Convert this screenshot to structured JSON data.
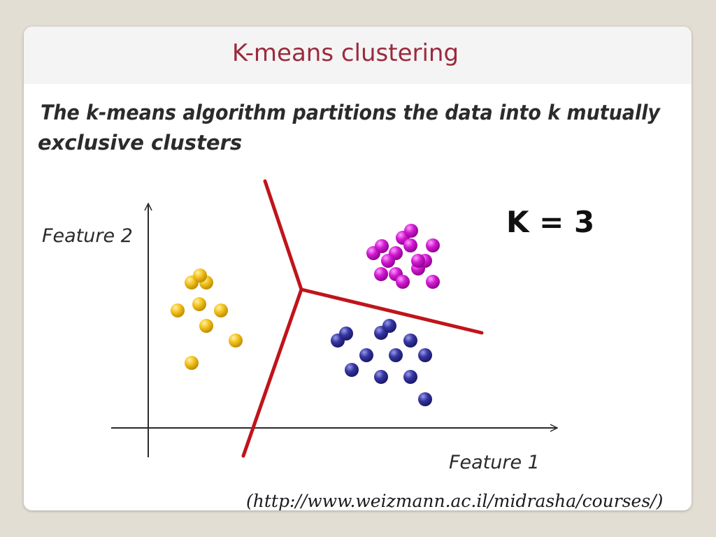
{
  "slide": {
    "title": "K-means clustering",
    "source": "(http://www.weizmann.ac.il/midrasha/courses/)"
  },
  "figure": {
    "heading_line1": "The k-means algorithm partitions the data into k mutually",
    "heading_line2": "exclusive clusters",
    "k_label": "K = 3",
    "y_axis_label": "Feature 2",
    "x_axis_label": "Feature 1",
    "colors": {
      "boundary": "#c0141b",
      "axis": "#2b2b2b",
      "cluster_yellow": "#f3c21c",
      "cluster_magenta": "#d21ad2",
      "cluster_blue": "#3535a3"
    },
    "cluster_sizes": {
      "yellow": 9,
      "magenta": 15,
      "blue": 12
    }
  }
}
